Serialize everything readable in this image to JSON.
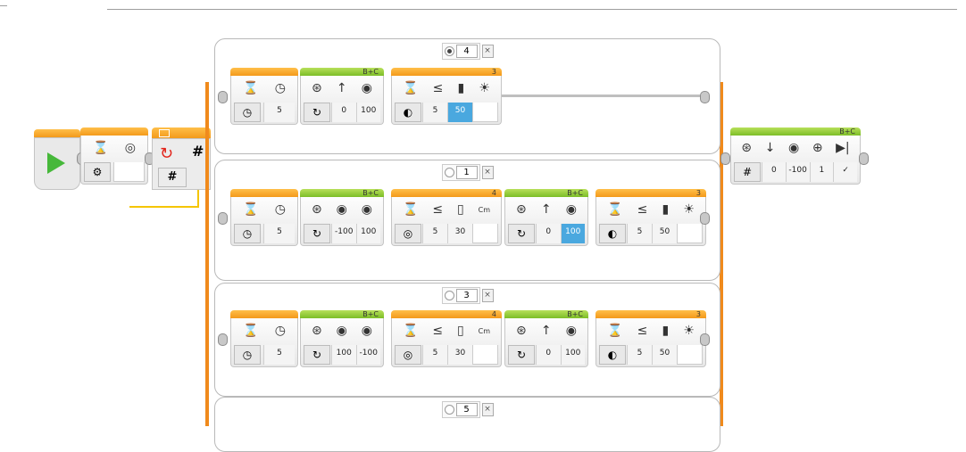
{
  "colors": {
    "flow_orange": "#f39a1b",
    "action_green": "#7cbd27",
    "start_play": "#46b83a",
    "highlight_blue": "#4aa8df",
    "data_wire": "#f5c500"
  },
  "start": {
    "icon": "play-icon"
  },
  "wait_top": {
    "params": []
  },
  "loop": {
    "label": "#"
  },
  "switch_cases": [
    {
      "value": "4",
      "default": true
    },
    {
      "value": "1",
      "default": false
    },
    {
      "value": "3",
      "default": false
    },
    {
      "value": "5",
      "default": false
    }
  ],
  "case4": {
    "wait": {
      "params": [
        "5"
      ]
    },
    "steer": {
      "port": "B+C",
      "params": [
        "0",
        "100"
      ]
    },
    "wait_color": {
      "port": "3",
      "params": [
        "5",
        "50"
      ]
    }
  },
  "case1": {
    "wait": {
      "params": [
        "5"
      ]
    },
    "tank": {
      "port": "B+C",
      "params": [
        "-100",
        "100"
      ]
    },
    "wait_us": {
      "port": "4",
      "params": [
        "5",
        "30"
      ],
      "unit": "Cm"
    },
    "steer": {
      "port": "B+C",
      "params": [
        "0",
        "100"
      ]
    },
    "wait_color": {
      "port": "3",
      "params": [
        "5",
        "50"
      ]
    }
  },
  "case3": {
    "wait": {
      "params": [
        "5"
      ]
    },
    "tank": {
      "port": "B+C",
      "params": [
        "100",
        "-100"
      ]
    },
    "wait_us": {
      "port": "4",
      "params": [
        "5",
        "30"
      ],
      "unit": "Cm"
    },
    "steer": {
      "port": "B+C",
      "params": [
        "0",
        "100"
      ]
    },
    "wait_color": {
      "port": "3",
      "params": [
        "5",
        "50"
      ]
    }
  },
  "end_steer": {
    "port": "B+C",
    "params": [
      "0",
      "-100",
      "1"
    ]
  },
  "symbols": {
    "le": "≤",
    "up": "↑",
    "down": "↓",
    "cm": "Cm",
    "sun": "☀",
    "stop": "▶|"
  }
}
